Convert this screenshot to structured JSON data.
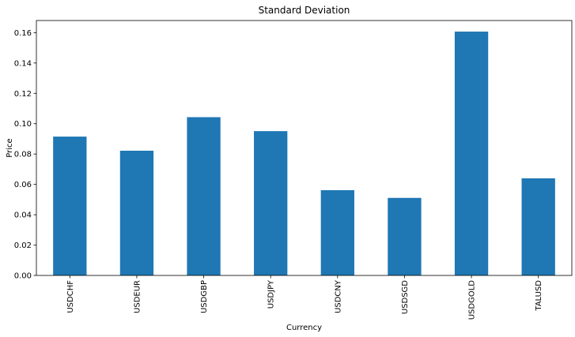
{
  "chart_data": {
    "type": "bar",
    "title": "Standard Deviation",
    "xlabel": "Currency",
    "ylabel": "Price",
    "categories": [
      "USDCHF",
      "USDEUR",
      "USDGBP",
      "USDJPY",
      "USDCNY",
      "USDSGD",
      "USDGOLD",
      "TALUSD"
    ],
    "values": [
      0.0915,
      0.0822,
      0.1043,
      0.0951,
      0.0562,
      0.0511,
      0.1607,
      0.064
    ],
    "ylim": [
      0,
      0.168
    ],
    "yticks": [
      "0.00",
      "0.02",
      "0.04",
      "0.06",
      "0.08",
      "0.10",
      "0.12",
      "0.14",
      "0.16"
    ],
    "grid": false,
    "legend": "none",
    "bar_color": "#1f77b4",
    "axis_color": "#000000"
  }
}
